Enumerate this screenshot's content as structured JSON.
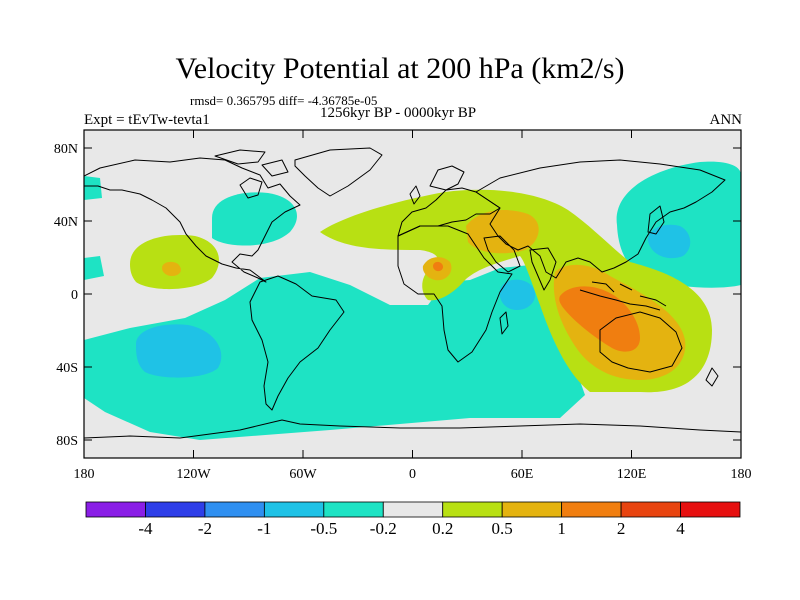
{
  "title": "Velocity Potential at 200 hPa (km2/s)",
  "stats": "rmsd= 0.365795 diff= -4.36785e-05",
  "experiment": "Expt = tEvTw-tevta1",
  "period": "1256kyr BP - 0000kyr BP",
  "season": "ANN",
  "axes": {
    "lat_ticks": [
      "80N",
      "40N",
      "0",
      "40S",
      "80S"
    ],
    "lon_ticks": [
      "180",
      "120W",
      "60W",
      "0",
      "60E",
      "120E",
      "180"
    ]
  },
  "colorbar": {
    "labels": [
      "-4",
      "-2",
      "-1",
      "-0.5",
      "-0.2",
      "0.2",
      "0.5",
      "1",
      "2",
      "4"
    ],
    "colors": [
      "#8a1ee6",
      "#2e3ee8",
      "#2f8ff0",
      "#1fc2e6",
      "#1ee3c4",
      "#e8e8e8",
      "#b8e013",
      "#e4b310",
      "#f07e10",
      "#e84410",
      "#e61010"
    ]
  },
  "colors": {
    "land": "#e8e8e8",
    "outline": "#000000"
  }
}
